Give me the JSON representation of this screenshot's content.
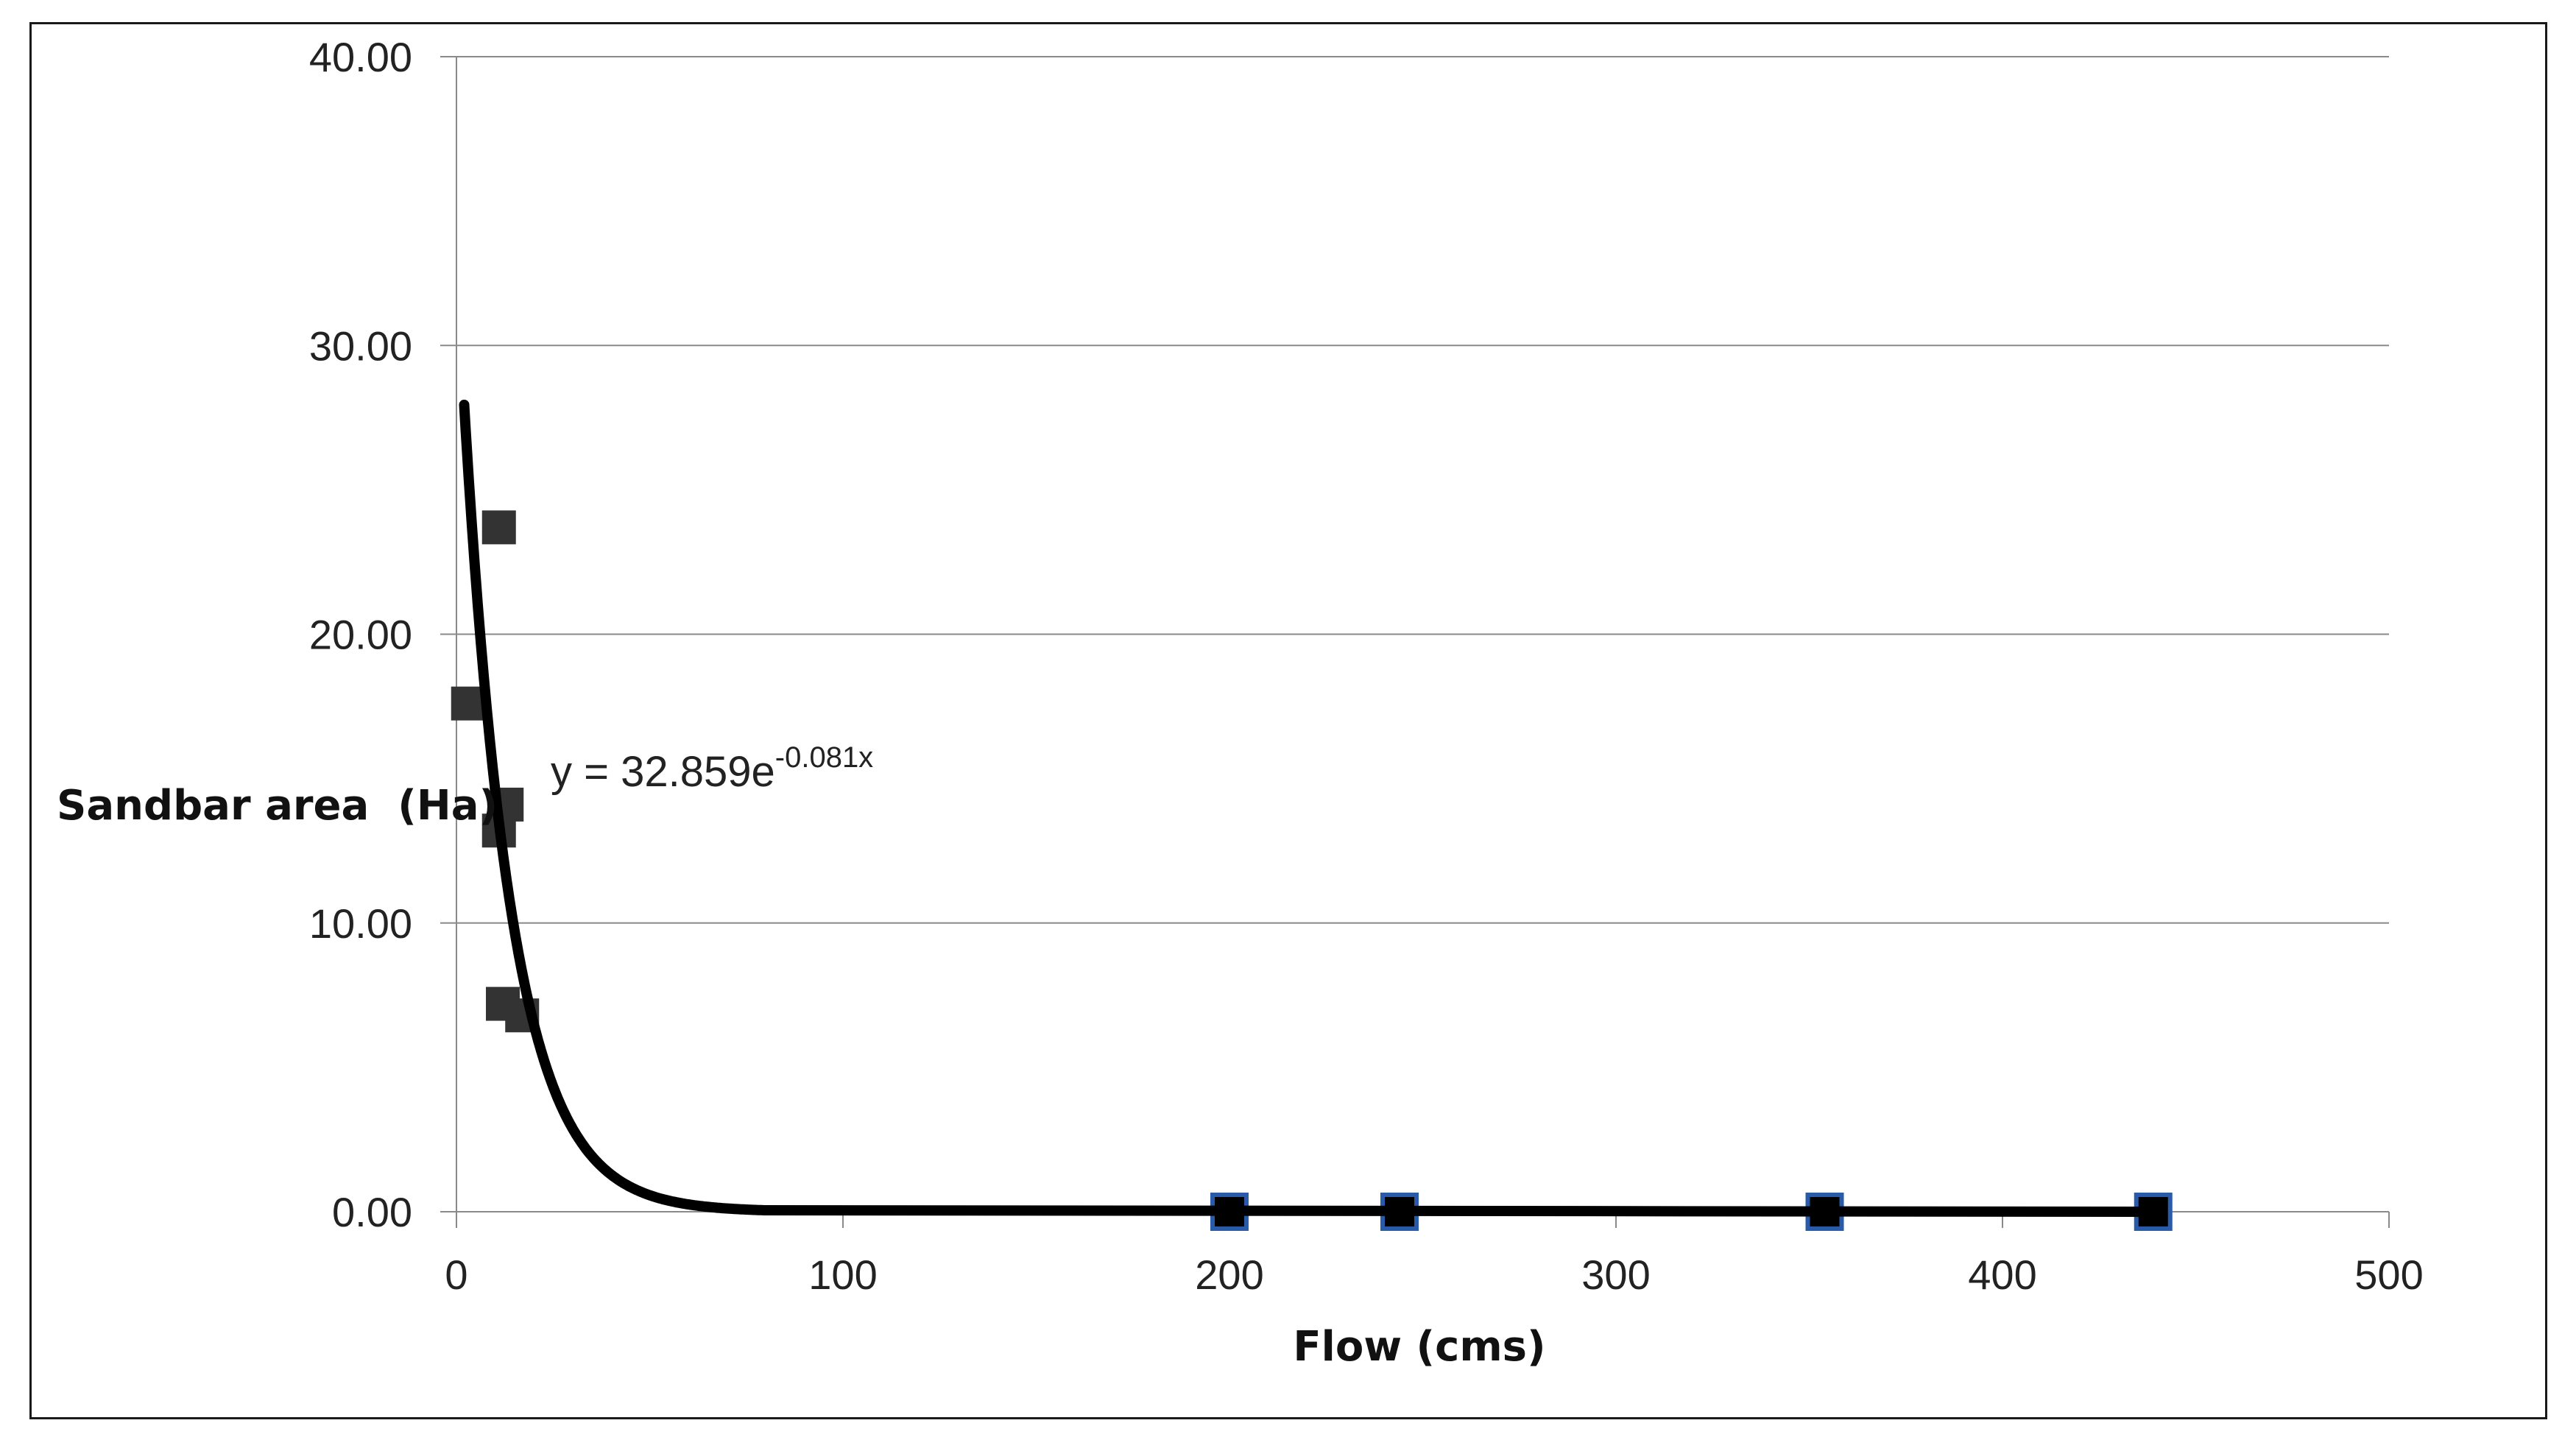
{
  "chart_data": {
    "type": "scatter",
    "title": "",
    "xlabel": "Flow (cms)",
    "ylabel": "Sandbar area  (Ha)",
    "xlim": [
      0,
      500
    ],
    "ylim": [
      0,
      40
    ],
    "x_ticks": [
      "0",
      "100",
      "200",
      "300",
      "400",
      "500"
    ],
    "y_ticks": [
      "0.00",
      "10.00",
      "20.00",
      "30.00",
      "40.00"
    ],
    "grid": "horizontal",
    "series": [
      {
        "marker": "square",
        "color": "#333333",
        "points": [
          {
            "x": 3,
            "y": 17.6
          },
          {
            "x": 11,
            "y": 23.7
          },
          {
            "x": 13,
            "y": 14.1
          },
          {
            "x": 11,
            "y": 13.2
          },
          {
            "x": 12,
            "y": 7.2
          },
          {
            "x": 17,
            "y": 6.8
          }
        ]
      },
      {
        "marker": "square",
        "color": "#000000",
        "edge_color": "#2a5ba8",
        "points": [
          {
            "x": 200,
            "y": 0
          },
          {
            "x": 244,
            "y": 0
          },
          {
            "x": 354,
            "y": 0
          },
          {
            "x": 439,
            "y": 0
          }
        ]
      }
    ],
    "trendline": {
      "type": "exponential",
      "a": 32.859,
      "b": -0.081,
      "x_range": [
        2,
        80
      ],
      "equation_base": "y = 32.859e",
      "equation_exponent": "-0.081x"
    }
  }
}
